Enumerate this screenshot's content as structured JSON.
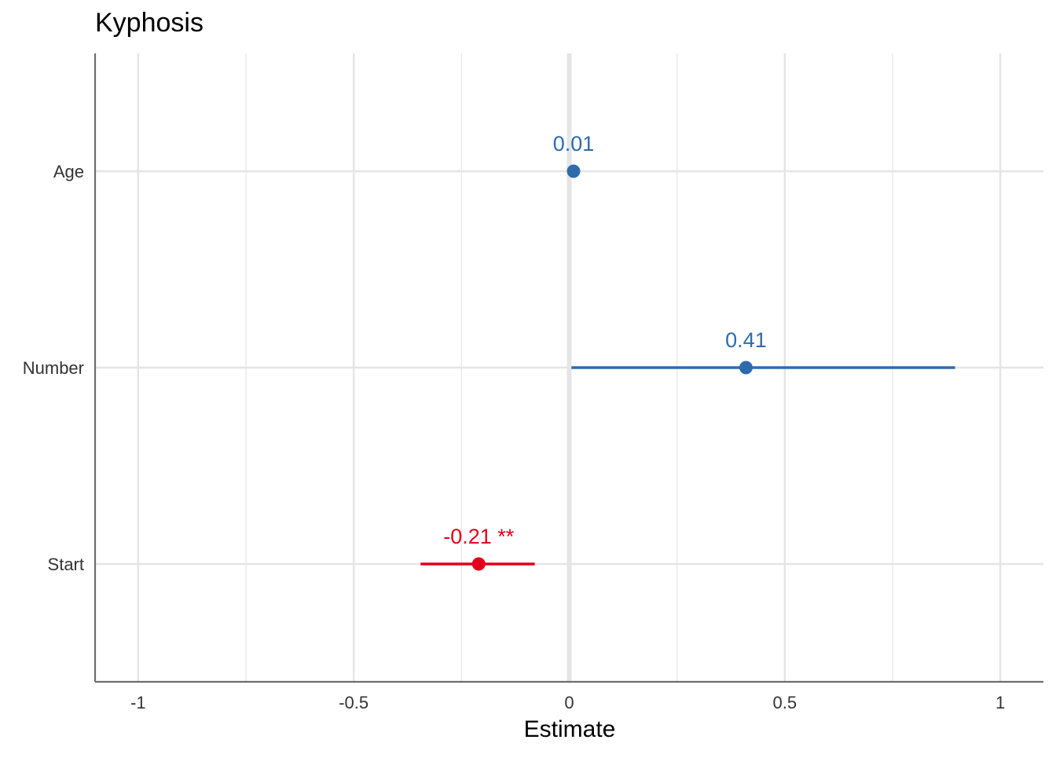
{
  "chart_data": {
    "type": "scatter",
    "title": "Kyphosis",
    "xlabel": "Estimate",
    "ylabel": "",
    "xlim": [
      -1.1,
      1.1
    ],
    "x_ticks": [
      {
        "value": -1,
        "label": "-1"
      },
      {
        "value": -0.5,
        "label": "-0.5"
      },
      {
        "value": 0,
        "label": "0"
      },
      {
        "value": 0.5,
        "label": "0.5"
      },
      {
        "value": 1,
        "label": "1"
      }
    ],
    "x_minor_ticks": [
      -0.75,
      -0.25,
      0.25,
      0.75
    ],
    "reference_line": 0,
    "grid": true,
    "terms": [
      {
        "term": "Age",
        "estimate": 0.01,
        "conf_low": 0.0,
        "conf_high": 0.02,
        "label": "0.01",
        "color": "#2E6BAD"
      },
      {
        "term": "Number",
        "estimate": 0.41,
        "conf_low": 0.005,
        "conf_high": 0.895,
        "label": "0.41",
        "color": "#2E6BAD"
      },
      {
        "term": "Start",
        "estimate": -0.21,
        "conf_low": -0.345,
        "conf_high": -0.08,
        "label": "-0.21 **",
        "color": "#E2001A"
      }
    ],
    "colors": {
      "positive": "#2E6BAD",
      "negative": "#E2001A",
      "grid": "#E5E5E5",
      "axis": "#6E6E6E"
    }
  }
}
